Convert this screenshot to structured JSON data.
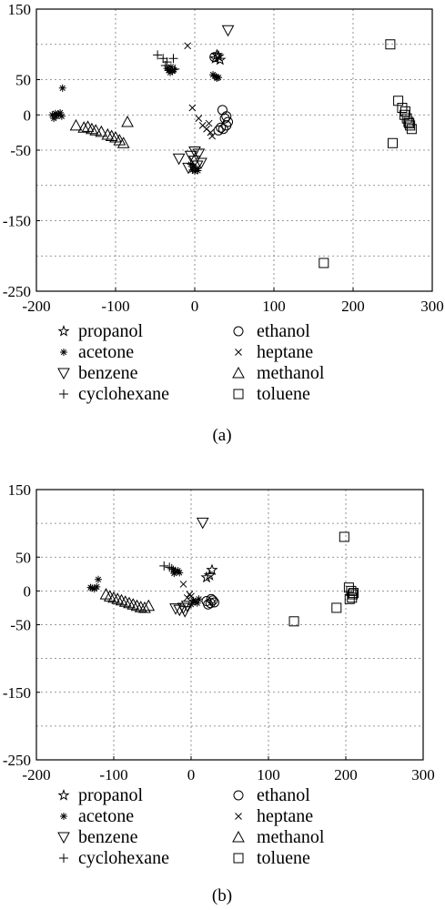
{
  "figure": {
    "captions": [
      "(a)",
      "(b)"
    ]
  },
  "legend": [
    {
      "label": "propanol",
      "marker": "star"
    },
    {
      "label": "ethanol",
      "marker": "circle"
    },
    {
      "label": "acetone",
      "marker": "asterisk"
    },
    {
      "label": "heptane",
      "marker": "x"
    },
    {
      "label": "benzene",
      "marker": "triangle-down"
    },
    {
      "label": "methanol",
      "marker": "triangle-up"
    },
    {
      "label": "cyclohexane",
      "marker": "plus"
    },
    {
      "label": "toluene",
      "marker": "square"
    }
  ],
  "chart_data": [
    {
      "type": "scatter",
      "title": "",
      "xlabel": "",
      "ylabel": "",
      "xlim": [
        -200,
        300
      ],
      "ylim": [
        -250,
        150
      ],
      "xticks": [
        -200,
        -100,
        0,
        100,
        200,
        300
      ],
      "yticks": [
        150,
        50,
        0,
        -50,
        -150,
        -250
      ],
      "grid": true,
      "legend_position": "below",
      "series": [
        {
          "name": "propanol",
          "marker": "star",
          "points": [
            [
              28,
              85
            ],
            [
              26,
              80
            ],
            [
              30,
              83
            ],
            [
              32,
              78
            ]
          ]
        },
        {
          "name": "ethanol",
          "marker": "circle",
          "points": [
            [
              25,
              82
            ],
            [
              35,
              7
            ],
            [
              30,
              -22
            ],
            [
              36,
              -20
            ],
            [
              40,
              -15
            ],
            [
              42,
              -10
            ],
            [
              38,
              -5
            ],
            [
              40,
              -2
            ],
            [
              33,
              -18
            ]
          ]
        },
        {
          "name": "acetone",
          "marker": "asterisk",
          "points": [
            [
              -167,
              38
            ],
            [
              -180,
              0
            ],
            [
              -175,
              -2
            ],
            [
              -170,
              3
            ],
            [
              -178,
              -5
            ],
            [
              -172,
              1
            ],
            [
              -168,
              -2
            ],
            [
              -176,
              2
            ],
            [
              -30,
              68
            ],
            [
              -33,
              63
            ],
            [
              -28,
              62
            ],
            [
              -35,
              66
            ],
            [
              -26,
              64
            ],
            [
              -31,
              60
            ],
            [
              25,
              55
            ],
            [
              28,
              52
            ],
            [
              23,
              57
            ],
            [
              27,
              54
            ],
            [
              30,
              53
            ],
            [
              -5,
              -70
            ],
            [
              -3,
              -78
            ],
            [
              2,
              -76
            ],
            [
              -2,
              -73
            ],
            [
              4,
              -79
            ],
            [
              0,
              -80
            ]
          ]
        },
        {
          "name": "heptane",
          "marker": "x",
          "points": [
            [
              -9,
              98
            ],
            [
              -3,
              10
            ],
            [
              5,
              -5
            ],
            [
              10,
              -15
            ],
            [
              15,
              -20
            ],
            [
              20,
              -25
            ],
            [
              22,
              -30
            ],
            [
              18,
              -12
            ]
          ]
        },
        {
          "name": "benzene",
          "marker": "triangle-down",
          "points": [
            [
              42,
              120
            ],
            [
              -20,
              -62
            ],
            [
              -5,
              -58
            ],
            [
              0,
              -52
            ],
            [
              5,
              -55
            ],
            [
              -8,
              -75
            ],
            [
              3,
              -72
            ],
            [
              8,
              -68
            ],
            [
              0,
              -65
            ]
          ]
        },
        {
          "name": "methanol",
          "marker": "triangle-up",
          "points": [
            [
              -85,
              -10
            ],
            [
              -150,
              -15
            ],
            [
              -140,
              -18
            ],
            [
              -130,
              -20
            ],
            [
              -125,
              -22
            ],
            [
              -118,
              -24
            ],
            [
              -110,
              -28
            ],
            [
              -100,
              -32
            ],
            [
              -95,
              -36
            ],
            [
              -90,
              -40
            ],
            [
              -135,
              -17
            ],
            [
              -105,
              -30
            ]
          ]
        },
        {
          "name": "cyclohexane",
          "marker": "plus",
          "points": [
            [
              -47,
              85
            ],
            [
              -40,
              80
            ],
            [
              -35,
              75
            ],
            [
              -27,
              80
            ],
            [
              -37,
              70
            ],
            [
              -25,
              65
            ]
          ]
        },
        {
          "name": "toluene",
          "marker": "square",
          "points": [
            [
              247,
              100
            ],
            [
              250,
              -40
            ],
            [
              163,
              -210
            ],
            [
              257,
              20
            ],
            [
              262,
              10
            ],
            [
              265,
              0
            ],
            [
              268,
              -5
            ],
            [
              270,
              -10
            ],
            [
              272,
              -15
            ],
            [
              274,
              -20
            ],
            [
              266,
              5
            ],
            [
              271,
              -12
            ]
          ]
        }
      ]
    },
    {
      "type": "scatter",
      "title": "",
      "xlabel": "",
      "ylabel": "",
      "xlim": [
        -200,
        300
      ],
      "ylim": [
        -250,
        150
      ],
      "xticks": [
        -200,
        -100,
        0,
        100,
        200,
        300
      ],
      "yticks": [
        150,
        50,
        0,
        -50,
        -150,
        -250
      ],
      "grid": true,
      "legend_position": "below",
      "series": [
        {
          "name": "propanol",
          "marker": "star",
          "points": [
            [
              27,
              31
            ],
            [
              24,
              23
            ],
            [
              20,
              20
            ]
          ]
        },
        {
          "name": "ethanol",
          "marker": "circle",
          "points": [
            [
              20,
              -15
            ],
            [
              25,
              -18
            ],
            [
              28,
              -14
            ],
            [
              22,
              -20
            ],
            [
              30,
              -17
            ],
            [
              26,
              -12
            ]
          ]
        },
        {
          "name": "acetone",
          "marker": "asterisk",
          "points": [
            [
              -120,
              17
            ],
            [
              -130,
              5
            ],
            [
              -125,
              3
            ],
            [
              -122,
              6
            ],
            [
              -128,
              4
            ],
            [
              -23,
              32
            ],
            [
              -20,
              29
            ],
            [
              -17,
              30
            ],
            [
              -15,
              27
            ],
            [
              -22,
              26
            ],
            [
              10,
              -12
            ],
            [
              5,
              -16
            ],
            [
              0,
              -20
            ],
            [
              8,
              -18
            ],
            [
              3,
              -14
            ]
          ]
        },
        {
          "name": "heptane",
          "marker": "x",
          "points": [
            [
              -10,
              10
            ],
            [
              -5,
              -10
            ],
            [
              -2,
              -5
            ],
            [
              0,
              -8
            ]
          ]
        },
        {
          "name": "benzene",
          "marker": "triangle-down",
          "points": [
            [
              15,
              101
            ],
            [
              -15,
              -28
            ],
            [
              -10,
              -25
            ],
            [
              -5,
              -22
            ],
            [
              -20,
              -26
            ],
            [
              -8,
              -30
            ]
          ]
        },
        {
          "name": "methanol",
          "marker": "triangle-up",
          "points": [
            [
              -110,
              -5
            ],
            [
              -100,
              -10
            ],
            [
              -95,
              -12
            ],
            [
              -90,
              -14
            ],
            [
              -85,
              -16
            ],
            [
              -80,
              -18
            ],
            [
              -75,
              -20
            ],
            [
              -70,
              -22
            ],
            [
              -65,
              -24
            ],
            [
              -60,
              -25
            ],
            [
              -55,
              -22
            ],
            [
              -105,
              -8
            ]
          ]
        },
        {
          "name": "cyclohexane",
          "marker": "plus",
          "points": [
            [
              -35,
              37
            ],
            [
              -28,
              35
            ],
            [
              -25,
              33
            ]
          ]
        },
        {
          "name": "toluene",
          "marker": "square",
          "points": [
            [
              198,
              80
            ],
            [
              204,
              5
            ],
            [
              207,
              0
            ],
            [
              209,
              -5
            ],
            [
              208,
              -10
            ],
            [
              205,
              -12
            ],
            [
              210,
              -3
            ],
            [
              188,
              -25
            ],
            [
              133,
              -45
            ]
          ]
        }
      ]
    }
  ]
}
